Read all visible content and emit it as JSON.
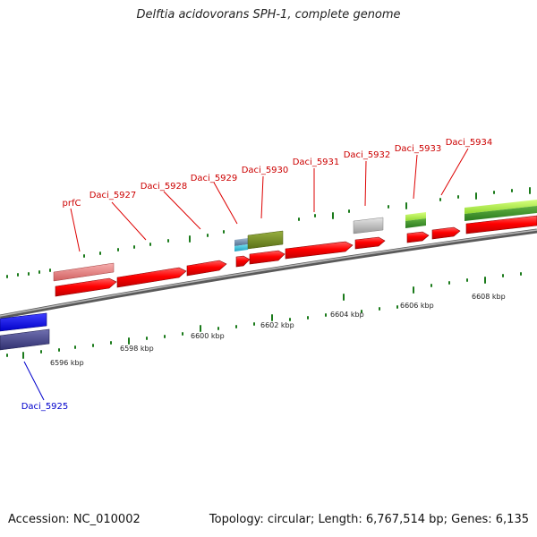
{
  "title": "Delftia acidovorans SPH-1, complete genome",
  "footer": {
    "accession": "Accession: NC_010002",
    "topology": "Topology: circular; Length: 6,767,514 bp; Genes: 6,135"
  },
  "scale_labels": [
    "6596 kbp",
    "6598 kbp",
    "6600 kbp",
    "6602 kbp",
    "6604 kbp",
    "6606 kbp",
    "6608 kbp"
  ],
  "gene_labels": {
    "prfC": "prfC",
    "d5927": "Daci_5927",
    "d5928": "Daci_5928",
    "d5929": "Daci_5929",
    "d5930": "Daci_5930",
    "d5931": "Daci_5931",
    "d5932": "Daci_5932",
    "d5933": "Daci_5933",
    "d5934": "Daci_5934",
    "d5925": "Daci_5925"
  },
  "colors": {
    "forward_gene": "#ff0000",
    "reverse_gene": "#0000ff",
    "label_forward": "#cc0000",
    "label_reverse": "#0000cc",
    "tick": "#1a7a1a",
    "backbone": "#8c8c8c"
  }
}
